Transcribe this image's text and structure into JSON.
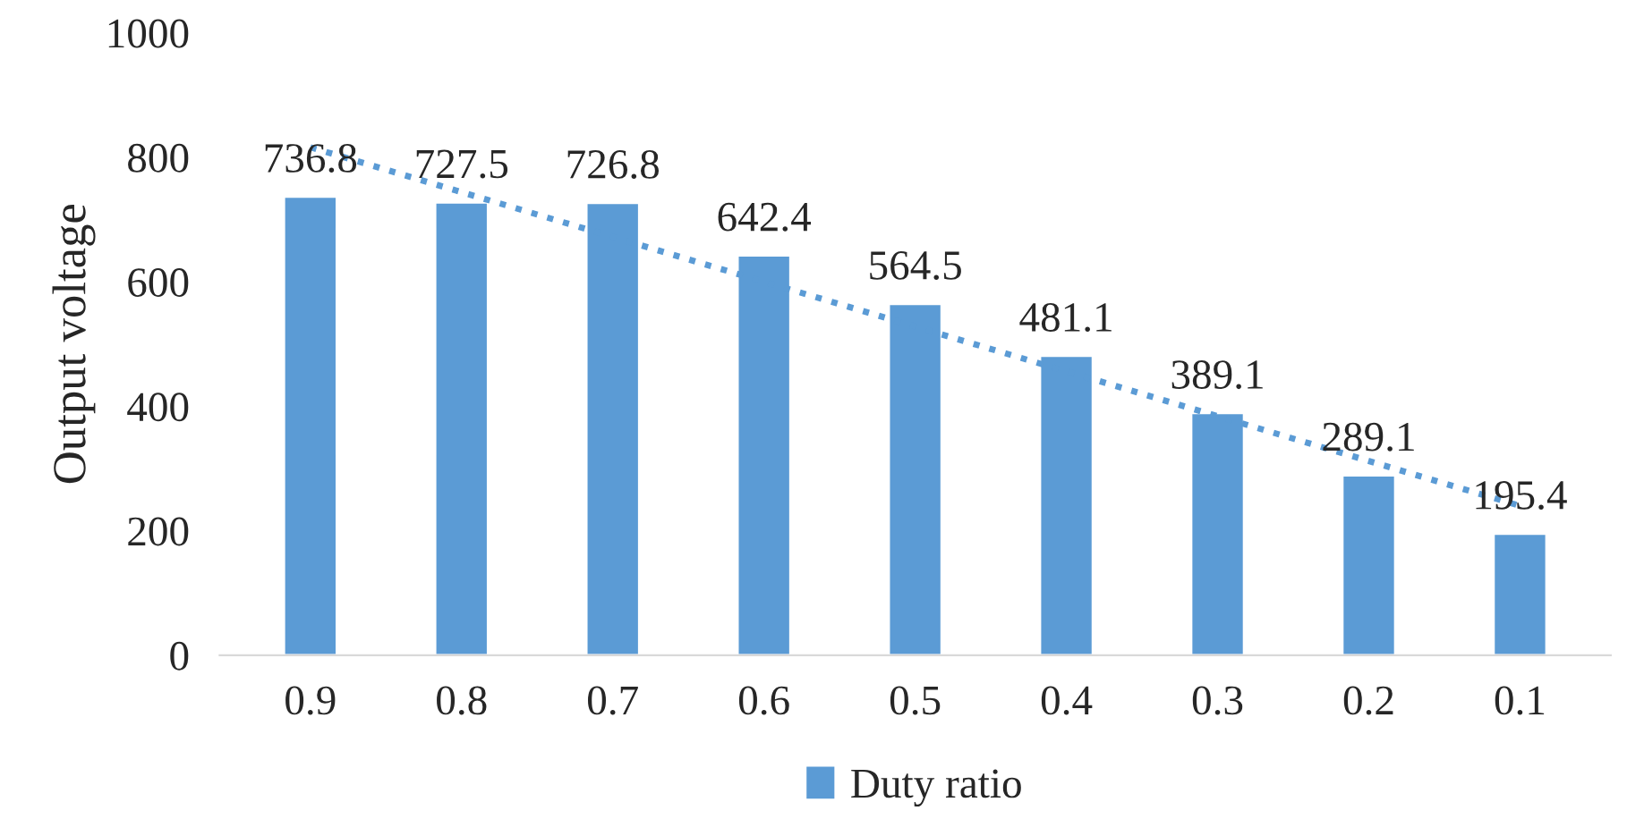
{
  "chart_data": {
    "type": "bar",
    "ylabel": "Output voltage",
    "categories": [
      "0.9",
      "0.8",
      "0.7",
      "0.6",
      "0.5",
      "0.4",
      "0.3",
      "0.2",
      "0.1"
    ],
    "series": [
      {
        "name": "Duty ratio",
        "color": "#5b9bd5",
        "values": [
          736.8,
          727.5,
          726.8,
          642.4,
          564.5,
          481.1,
          389.1,
          289.1,
          195.4
        ],
        "value_labels": [
          "736.8",
          "727.5",
          "726.8",
          "642.4",
          "564.5",
          "481.1",
          "389.1",
          "289.1",
          "195.4"
        ]
      },
      {
        "type": "line",
        "color": "#5b9bd5",
        "line_style": "dotted",
        "marker": "none",
        "values": [
          816,
          744,
          672,
          600,
          528,
          456,
          384,
          312,
          240
        ]
      }
    ],
    "ylim": [
      0,
      1000
    ],
    "yticks": [
      0,
      200,
      400,
      600,
      800,
      1000
    ],
    "grid": false,
    "legend": "bottom"
  }
}
